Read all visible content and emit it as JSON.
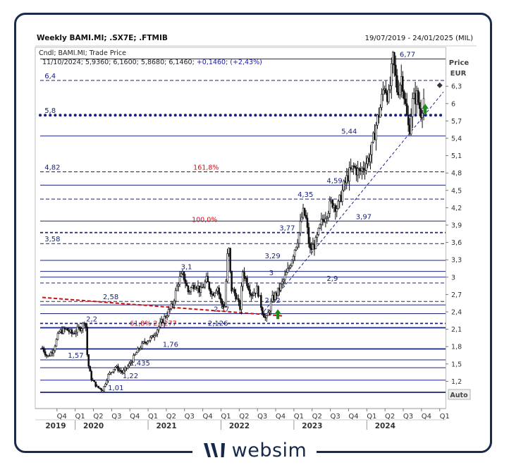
{
  "header": {
    "title": "Weekly BAMI.MI; .SX7E; .FTMIB",
    "date_range": "19/07/2019 - 24/01/2025 (MIL)",
    "legend_line1": "Cndl; BAMI.MI; Trade Price",
    "legend_line2_values": "11/10/2024; 5,9360; 6,1600; 5,8680; 6,1460;",
    "legend_line2_change": "+0,1460; (+2,43%)"
  },
  "axis": {
    "price_label": "Price",
    "currency_label": "EUR",
    "auto_label": "Auto"
  },
  "brand": {
    "name": "websim"
  },
  "chart_data": {
    "type": "candlestick",
    "x_range": [
      "2019-07",
      "2025-01"
    ],
    "y_range": [
      0.9,
      6.9
    ],
    "y_ticks": [
      {
        "v": 6.3,
        "label": "6,3"
      },
      {
        "v": 6.0,
        "label": "6"
      },
      {
        "v": 5.7,
        "label": "5,7"
      },
      {
        "v": 5.4,
        "label": "5,4"
      },
      {
        "v": 5.1,
        "label": "5,1"
      },
      {
        "v": 4.8,
        "label": "4,8"
      },
      {
        "v": 4.5,
        "label": "4,5"
      },
      {
        "v": 4.2,
        "label": "4,2"
      },
      {
        "v": 3.9,
        "label": "3,9"
      },
      {
        "v": 3.6,
        "label": "3,6"
      },
      {
        "v": 3.3,
        "label": "3,3"
      },
      {
        "v": 3.0,
        "label": "3"
      },
      {
        "v": 2.7,
        "label": "2,7"
      },
      {
        "v": 2.4,
        "label": "2,4"
      },
      {
        "v": 2.1,
        "label": "2,1"
      },
      {
        "v": 1.8,
        "label": "1,8"
      },
      {
        "v": 1.5,
        "label": "1,5"
      },
      {
        "v": 1.2,
        "label": "1,2"
      }
    ],
    "x_quarters": [
      {
        "t": 2019.75,
        "label": "Q4"
      },
      {
        "t": 2020.0,
        "label": "Q1"
      },
      {
        "t": 2020.25,
        "label": "Q2"
      },
      {
        "t": 2020.5,
        "label": "Q3"
      },
      {
        "t": 2020.75,
        "label": "Q4"
      },
      {
        "t": 2021.0,
        "label": "Q1"
      },
      {
        "t": 2021.25,
        "label": "Q2"
      },
      {
        "t": 2021.5,
        "label": "Q3"
      },
      {
        "t": 2021.75,
        "label": "Q4"
      },
      {
        "t": 2022.0,
        "label": "Q1"
      },
      {
        "t": 2022.25,
        "label": "Q2"
      },
      {
        "t": 2022.5,
        "label": "Q3"
      },
      {
        "t": 2022.75,
        "label": "Q4"
      },
      {
        "t": 2023.0,
        "label": "Q1"
      },
      {
        "t": 2023.25,
        "label": "Q2"
      },
      {
        "t": 2023.5,
        "label": "Q3"
      },
      {
        "t": 2023.75,
        "label": "Q4"
      },
      {
        "t": 2024.0,
        "label": "Q1"
      },
      {
        "t": 2024.25,
        "label": "Q2"
      },
      {
        "t": 2024.5,
        "label": "Q3"
      },
      {
        "t": 2024.75,
        "label": "Q4"
      },
      {
        "t": 2025.0,
        "label": "Q1"
      }
    ],
    "x_years": [
      {
        "t": 2019.55,
        "label": "2019"
      },
      {
        "t": 2020.0,
        "label": "2020"
      },
      {
        "t": 2021.0,
        "label": "2021"
      },
      {
        "t": 2022.0,
        "label": "2022"
      },
      {
        "t": 2023.0,
        "label": "2023"
      },
      {
        "t": 2024.0,
        "label": "2024"
      }
    ],
    "price_path": [
      [
        2019.55,
        1.78
      ],
      [
        2019.62,
        1.62
      ],
      [
        2019.7,
        1.75
      ],
      [
        2019.78,
        2.05
      ],
      [
        2019.88,
        2.1
      ],
      [
        2019.96,
        2.02
      ],
      [
        2020.04,
        2.1
      ],
      [
        2020.1,
        2.15
      ],
      [
        2020.14,
        2.3
      ],
      [
        2020.17,
        1.55
      ],
      [
        2020.22,
        1.25
      ],
      [
        2020.3,
        1.1
      ],
      [
        2020.38,
        1.05
      ],
      [
        2020.45,
        1.3
      ],
      [
        2020.55,
        1.45
      ],
      [
        2020.65,
        1.35
      ],
      [
        2020.75,
        1.5
      ],
      [
        2020.85,
        1.72
      ],
      [
        2020.95,
        1.88
      ],
      [
        2021.05,
        1.95
      ],
      [
        2021.15,
        2.15
      ],
      [
        2021.25,
        2.35
      ],
      [
        2021.33,
        2.5
      ],
      [
        2021.42,
        2.95
      ],
      [
        2021.48,
        3.05
      ],
      [
        2021.55,
        2.75
      ],
      [
        2021.65,
        2.9
      ],
      [
        2021.72,
        2.75
      ],
      [
        2021.8,
        2.95
      ],
      [
        2021.88,
        2.7
      ],
      [
        2021.95,
        2.85
      ],
      [
        2022.0,
        2.55
      ],
      [
        2022.05,
        2.5
      ],
      [
        2022.1,
        3.62
      ],
      [
        2022.14,
        2.8
      ],
      [
        2022.2,
        2.7
      ],
      [
        2022.26,
        2.45
      ],
      [
        2022.3,
        3.1
      ],
      [
        2022.36,
        2.9
      ],
      [
        2022.42,
        2.7
      ],
      [
        2022.5,
        2.8
      ],
      [
        2022.56,
        2.45
      ],
      [
        2022.62,
        2.25
      ],
      [
        2022.7,
        2.62
      ],
      [
        2022.78,
        2.75
      ],
      [
        2022.86,
        2.95
      ],
      [
        2022.93,
        3.15
      ],
      [
        2023.0,
        3.45
      ],
      [
        2023.06,
        3.7
      ],
      [
        2023.12,
        4.12
      ],
      [
        2023.16,
        4.05
      ],
      [
        2023.22,
        3.45
      ],
      [
        2023.3,
        3.6
      ],
      [
        2023.38,
        3.95
      ],
      [
        2023.46,
        4.15
      ],
      [
        2023.52,
        4.3
      ],
      [
        2023.6,
        4.2
      ],
      [
        2023.68,
        4.55
      ],
      [
        2023.74,
        4.75
      ],
      [
        2023.82,
        4.9
      ],
      [
        2023.9,
        4.8
      ],
      [
        2024.0,
        5.0
      ],
      [
        2024.06,
        5.15
      ],
      [
        2024.12,
        5.6
      ],
      [
        2024.18,
        5.9
      ],
      [
        2024.24,
        6.35
      ],
      [
        2024.3,
        6.1
      ],
      [
        2024.36,
        6.77
      ],
      [
        2024.42,
        6.2
      ],
      [
        2024.48,
        6.5
      ],
      [
        2024.54,
        5.85
      ],
      [
        2024.58,
        5.5
      ],
      [
        2024.62,
        6.0
      ],
      [
        2024.68,
        6.15
      ],
      [
        2024.74,
        5.85
      ],
      [
        2024.79,
        6.146
      ]
    ],
    "horizontal_levels": [
      {
        "v": 6.77,
        "label": "6,77",
        "style": "solid",
        "label_at": 2024.45
      },
      {
        "v": 6.4,
        "label": "6,4",
        "style": "dashed",
        "label_at": 2019.58
      },
      {
        "v": 5.8,
        "label": "5,8",
        "style": "dotted",
        "label_at": 2019.58
      },
      {
        "v": 5.44,
        "label": "5,44",
        "style": "solid",
        "label_at": 2023.65
      },
      {
        "v": 4.82,
        "label": "4,82",
        "style": "dashed",
        "label_at": 2019.58
      },
      {
        "v": 4.59,
        "label": "4,59",
        "style": "solid",
        "label_at": 2023.45
      },
      {
        "v": 4.35,
        "label": "4,35",
        "style": "dashed",
        "label_at": 2023.05
      },
      {
        "v": 3.97,
        "label": "3,97",
        "style": "solid",
        "label_at": 2023.85
      },
      {
        "v": 3.77,
        "label": "3,77",
        "style": "dashed-thick",
        "label_at": 2022.8
      },
      {
        "v": 3.58,
        "label": "3,58",
        "style": "dashed",
        "label_at": 2019.58
      },
      {
        "v": 3.29,
        "label": "3,29",
        "style": "solid",
        "label_at": 2022.6
      },
      {
        "v": 3.1,
        "label": "3,1",
        "style": "solid",
        "label_at": 2021.45
      },
      {
        "v": 3.0,
        "label": "3",
        "style": "solid",
        "label_at": 2022.66
      },
      {
        "v": 2.9,
        "label": "2,9",
        "style": "dashed",
        "label_at": 2023.45
      },
      {
        "v": 2.58,
        "label": "2,58",
        "style": "dashed",
        "label_at": 2020.38
      },
      {
        "v": 2.52,
        "label": "2,52",
        "style": "solid",
        "label_at": 2022.6
      },
      {
        "v": 2.37,
        "label": "2,37",
        "style": "solid",
        "label_at": 2021.9
      },
      {
        "v": 2.2,
        "label": "2,2",
        "style": "dashed-thick",
        "label_at": 2020.15
      },
      {
        "v": 2.126,
        "label": "2,126",
        "style": "solid-thick",
        "label_at": 2021.82
      },
      {
        "v": 1.76,
        "label": "1,76",
        "style": "solid-thick",
        "label_at": 2021.2
      },
      {
        "v": 1.57,
        "label": "1,57",
        "style": "solid",
        "label_at": 2019.9
      },
      {
        "v": 1.435,
        "label": "1,435",
        "style": "solid",
        "label_at": 2020.75
      },
      {
        "v": 1.22,
        "label": "1,22",
        "style": "solid",
        "label_at": 2020.65
      },
      {
        "v": 1.01,
        "label": "1,01",
        "style": "solid-thick",
        "label_at": 2020.45
      }
    ],
    "fibonacci_labels": [
      {
        "v": 4.82,
        "label": "161,8%",
        "at": 2021.62
      },
      {
        "v": 3.92,
        "label": "100,0%",
        "at": 2021.6
      },
      {
        "v": 2.1277,
        "label": "61,8% 2,1277",
        "at": 2020.75
      }
    ],
    "trendlines": [
      {
        "from": [
          2022.55,
          2.35
        ],
        "to": [
          2025.05,
          6.2
        ],
        "style": "dashed",
        "color": "#1a2580"
      },
      {
        "from": [
          2019.55,
          2.65
        ],
        "to": [
          2022.85,
          2.33
        ],
        "style": "dashed-red",
        "color": "#d01010"
      }
    ],
    "arrows": [
      {
        "t": 2022.78,
        "v": 2.3
      },
      {
        "t": 2024.8,
        "v": 5.85
      }
    ],
    "markers": [
      {
        "t": 2025.0,
        "v": 6.146,
        "color": "#333333"
      }
    ],
    "colors": {
      "level_line": "#1a237e",
      "price": "#111111",
      "fib_text": "#d01010",
      "arrow": "#1b8a1b"
    }
  }
}
